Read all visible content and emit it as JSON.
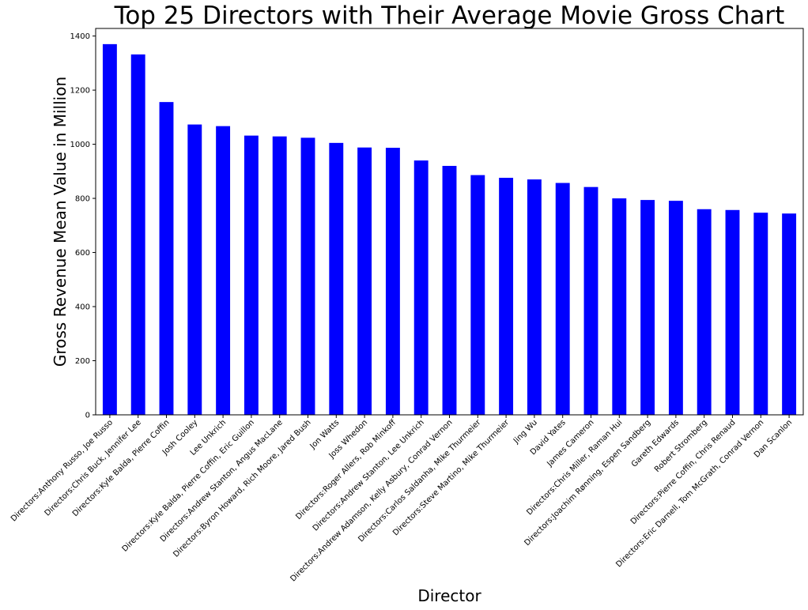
{
  "chart_data": {
    "type": "bar",
    "title": "Top 25 Directors with Their Average Movie Gross Chart",
    "xlabel": "Director",
    "ylabel": "Gross Revenue Mean Value in Million",
    "ylim": [
      0,
      1428
    ],
    "yticks": [
      0,
      200,
      400,
      600,
      800,
      1000,
      1200,
      1400
    ],
    "bar_color": "#0000ff",
    "grid": false,
    "categories": [
      "Directors:Anthony Russo, Joe Russo",
      "Directors:Chris Buck, Jennifer Lee",
      "Directors:Kyle Balda, Pierre Coffin",
      "Josh Cooley",
      "Lee Unkrich",
      "Directors:Kyle Balda, Pierre Coffin, Eric Guillon",
      "Directors:Andrew Stanton, Angus MacLane",
      "Directors:Byron Howard, Rich Moore, Jared Bush",
      "Jon Watts",
      "Joss Whedon",
      "Directors:Roger Allers, Rob Minkoff",
      "Directors:Andrew Stanton, Lee Unkrich",
      "Directors:Andrew Adamson, Kelly Asbury, Conrad Vernon",
      "Directors:Carlos Saldanha, Mike Thurmeier",
      "Directors:Steve Martino, Mike Thurmeier",
      "Jing Wu",
      "David Yates",
      "James Cameron",
      "Directors:Chris Miller, Raman Hui",
      "Directors:Joachim Rønning, Espen Sandberg",
      "Gareth Edwards",
      "Robert Stromberg",
      "Directors:Pierre Coffin, Chris Renaud",
      "Directors:Eric Darnell, Tom McGrath, Conrad Vernon",
      "Dan Scanlon"
    ],
    "values": [
      1370,
      1332,
      1156,
      1073,
      1067,
      1032,
      1029,
      1024,
      1005,
      988,
      987,
      940,
      920,
      886,
      876,
      870,
      857,
      842,
      800,
      794,
      791,
      760,
      757,
      747,
      744
    ]
  }
}
